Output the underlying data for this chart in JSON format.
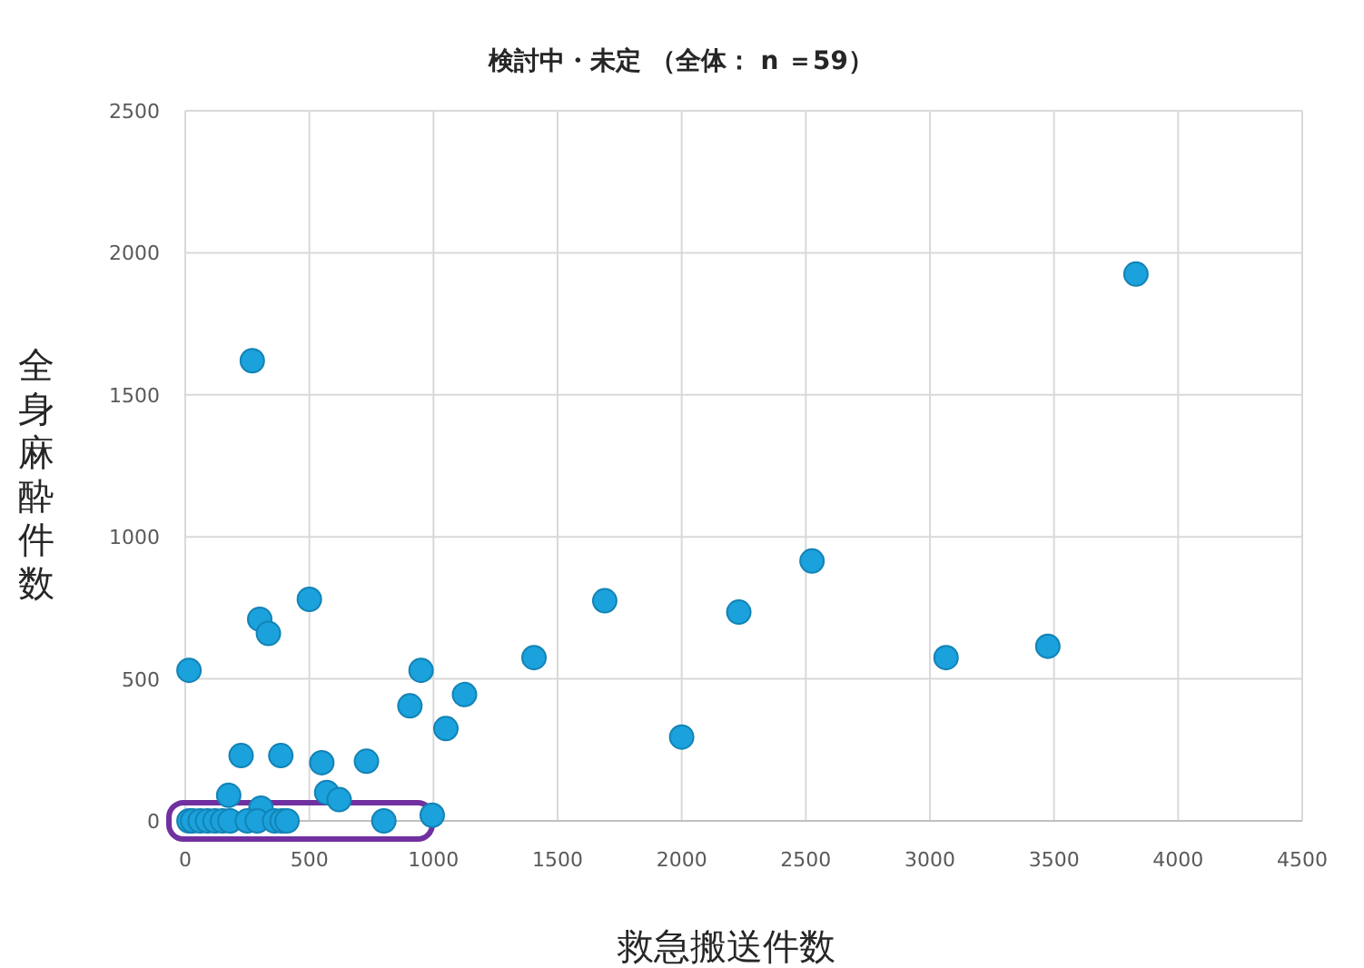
{
  "chart_data": {
    "type": "scatter",
    "title": "検討中・未定 （全体： n ＝59）",
    "xlabel": "救急搬送件数",
    "ylabel": "全身麻酔件数",
    "marker": "circle",
    "grid": true,
    "xlim": [
      0,
      4500
    ],
    "xticks": [
      0,
      500,
      1000,
      1500,
      2000,
      2500,
      3000,
      3500,
      4000,
      4500
    ],
    "ylim": [
      0,
      2500
    ],
    "yticks": [
      0,
      500,
      1000,
      1500,
      2000,
      2500
    ],
    "series": [
      {
        "color": "#1ba1dc",
        "x": [
          270,
          3830,
          15,
          500,
          300,
          335,
          950,
          905,
          1050,
          1125,
          1405,
          1690,
          2230,
          2525,
          2000,
          3065,
          3475,
          225,
          385,
          550,
          730,
          570,
          620,
          175,
          305,
          995,
          15,
          30,
          60,
          90,
          120,
          150,
          180,
          250,
          290,
          360,
          390,
          410,
          800
        ],
        "values": [
          1620,
          1925,
          530,
          780,
          710,
          660,
          530,
          405,
          325,
          445,
          575,
          775,
          735,
          915,
          295,
          575,
          615,
          230,
          230,
          205,
          210,
          100,
          75,
          90,
          45,
          20,
          0,
          0,
          0,
          0,
          0,
          0,
          0,
          0,
          0,
          0,
          0,
          0,
          0
        ]
      }
    ]
  }
}
